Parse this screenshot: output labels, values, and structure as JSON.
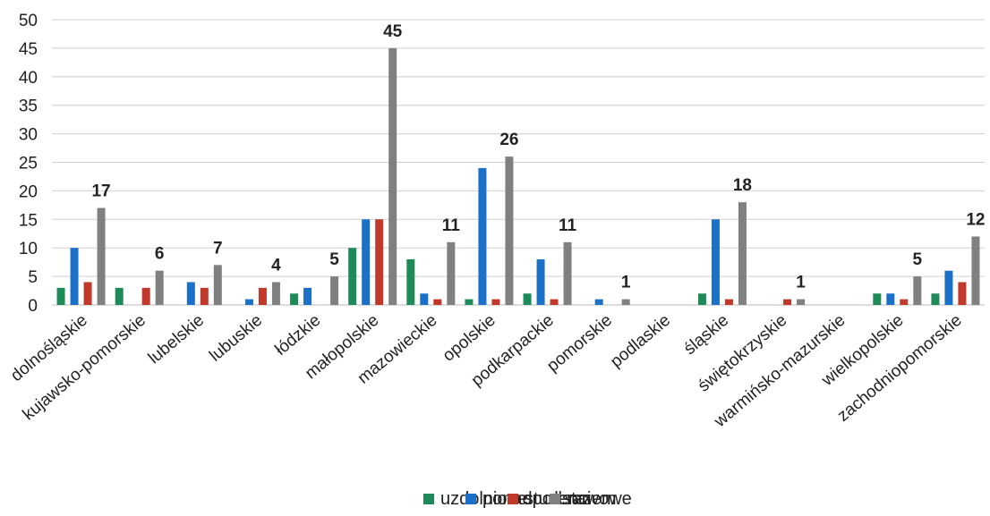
{
  "chart_data": {
    "type": "bar",
    "ylim": [
      0,
      50
    ],
    "yticks": [
      0,
      5,
      10,
      15,
      20,
      25,
      30,
      35,
      40,
      45,
      50
    ],
    "grid": true,
    "legend_position": "bottom",
    "categories": [
      "dolnośląskie",
      "kujawsko-pomorskie",
      "lubelskie",
      "lubuskie",
      "łódzkie",
      "małopolskie",
      "mazowieckie",
      "opolskie",
      "podkarpackie",
      "pomorskie",
      "podlaskie",
      "śląskie",
      "świętokrzyskie",
      "warmińsko-mazurskie",
      "wielkopolskie",
      "zachodniopomorskie"
    ],
    "series": [
      {
        "name": "uzdolnione",
        "color": "#1e8a5a",
        "values": [
          3,
          3,
          0,
          0,
          2,
          10,
          8,
          1,
          2,
          0,
          0,
          2,
          0,
          0,
          2,
          2
        ]
      },
      {
        "name": "ponadpodstawowe",
        "color": "#1b70c8",
        "values": [
          10,
          0,
          4,
          1,
          3,
          15,
          2,
          24,
          8,
          1,
          0,
          15,
          0,
          0,
          2,
          6
        ]
      },
      {
        "name": "studenci",
        "color": "#c0392b",
        "values": [
          4,
          3,
          3,
          3,
          0,
          15,
          1,
          1,
          1,
          0,
          0,
          1,
          1,
          0,
          1,
          4
        ]
      },
      {
        "name": "razem",
        "color": "#808080",
        "values": [
          17,
          6,
          7,
          4,
          5,
          45,
          11,
          26,
          11,
          1,
          0,
          18,
          1,
          0,
          5,
          12
        ]
      }
    ],
    "data_labels": [
      "17",
      "6",
      "7",
      "4",
      "5",
      "45",
      "11",
      "26",
      "11",
      "1",
      "",
      "18",
      "1",
      "",
      "5",
      "12"
    ],
    "gridline_color": "#d0d0d0"
  }
}
